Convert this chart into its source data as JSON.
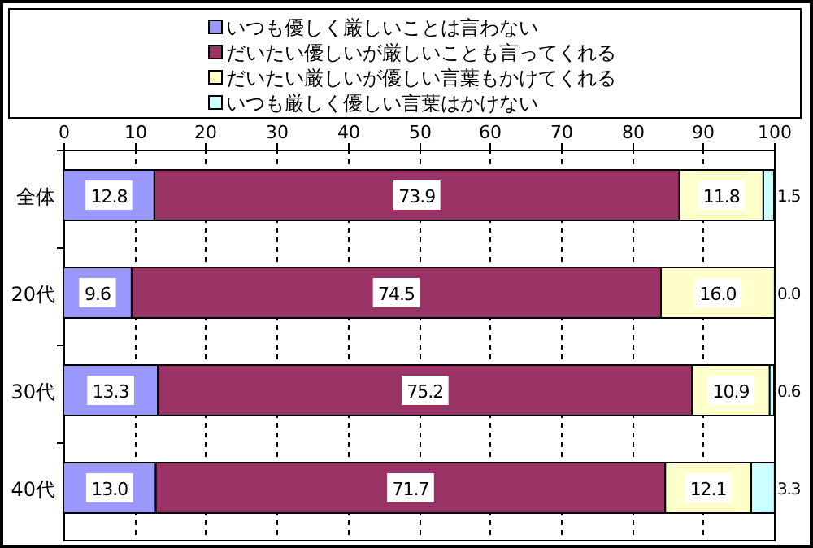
{
  "chart_data": {
    "type": "bar",
    "orientation": "horizontal",
    "stacked": true,
    "grid": "x",
    "legend": "top",
    "categories": [
      "全体",
      "20代",
      "30代",
      "40代"
    ],
    "xlim": [
      0,
      100
    ],
    "xticks": [
      0,
      10,
      20,
      30,
      40,
      50,
      60,
      70,
      80,
      90,
      100
    ],
    "series": [
      {
        "name": "いつも優しく厳しいことは言わない",
        "color": "#9999ff",
        "values": [
          12.8,
          9.6,
          13.3,
          13.0
        ],
        "value_labels": [
          "12.8",
          "9.6",
          "13.3",
          "13.0"
        ]
      },
      {
        "name": "だいたい優しいが厳しいことも言ってくれる",
        "color": "#993366",
        "values": [
          73.9,
          74.5,
          75.2,
          71.7
        ],
        "value_labels": [
          "73.9",
          "74.5",
          "75.2",
          "71.7"
        ]
      },
      {
        "name": "だいたい厳しいが優しい言葉もかけてくれる",
        "color": "#ffffcc",
        "values": [
          11.8,
          16.0,
          10.9,
          12.1
        ],
        "value_labels": [
          "11.8",
          "16.0",
          "10.9",
          "12.1"
        ]
      },
      {
        "name": "いつも厳しく優しい言葉はかけない",
        "color": "#ccffff",
        "values": [
          1.5,
          0.0,
          0.6,
          3.3
        ],
        "value_labels": [
          "1.5",
          "0.0",
          "0.6",
          "3.3"
        ]
      }
    ]
  }
}
